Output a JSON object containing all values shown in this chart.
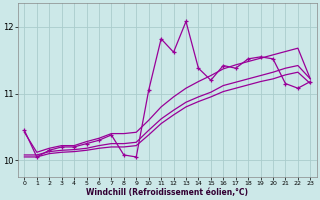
{
  "xlabel": "Windchill (Refroidissement éolien,°C)",
  "bg_color": "#cce8e8",
  "grid_color": "#aacccc",
  "line_color": "#990099",
  "xlim": [
    -0.5,
    23.5
  ],
  "ylim": [
    9.75,
    12.35
  ],
  "yticks": [
    10,
    11,
    12
  ],
  "xticks": [
    0,
    1,
    2,
    3,
    4,
    5,
    6,
    7,
    8,
    9,
    10,
    11,
    12,
    13,
    14,
    15,
    16,
    17,
    18,
    19,
    20,
    21,
    22,
    23
  ],
  "curve_x": [
    0,
    1,
    2,
    3,
    4,
    5,
    6,
    7,
    8,
    9,
    10,
    11,
    12,
    13,
    14,
    15,
    16,
    17,
    18,
    19,
    20,
    21,
    22,
    23
  ],
  "curve_y": [
    10.45,
    10.05,
    10.15,
    10.2,
    10.2,
    10.25,
    10.3,
    10.38,
    10.08,
    10.05,
    11.05,
    11.82,
    11.62,
    12.08,
    11.38,
    11.2,
    11.42,
    11.38,
    11.52,
    11.55,
    11.52,
    11.15,
    11.08,
    11.18
  ],
  "line1_x": [
    0,
    1,
    2,
    3,
    4,
    5,
    6,
    7,
    8,
    9,
    10,
    11,
    12,
    13,
    14,
    15,
    16,
    17,
    18,
    19,
    20,
    21,
    22,
    23
  ],
  "line1_y": [
    10.05,
    10.05,
    10.1,
    10.12,
    10.13,
    10.15,
    10.18,
    10.2,
    10.2,
    10.22,
    10.38,
    10.55,
    10.68,
    10.8,
    10.88,
    10.95,
    11.03,
    11.08,
    11.13,
    11.18,
    11.22,
    11.28,
    11.32,
    11.15
  ],
  "line2_x": [
    0,
    1,
    2,
    3,
    4,
    5,
    6,
    7,
    8,
    9,
    10,
    11,
    12,
    13,
    14,
    15,
    16,
    17,
    18,
    19,
    20,
    21,
    22,
    23
  ],
  "line2_y": [
    10.08,
    10.08,
    10.13,
    10.15,
    10.16,
    10.18,
    10.22,
    10.25,
    10.25,
    10.27,
    10.45,
    10.62,
    10.75,
    10.87,
    10.95,
    11.02,
    11.12,
    11.17,
    11.22,
    11.27,
    11.32,
    11.38,
    11.42,
    11.22
  ],
  "line3_x": [
    0,
    1,
    2,
    3,
    4,
    5,
    6,
    7,
    8,
    9,
    10,
    11,
    12,
    13,
    14,
    15,
    16,
    17,
    18,
    19,
    20,
    21,
    22,
    23
  ],
  "line3_y": [
    10.42,
    10.12,
    10.18,
    10.22,
    10.22,
    10.28,
    10.33,
    10.4,
    10.4,
    10.42,
    10.6,
    10.8,
    10.95,
    11.08,
    11.18,
    11.27,
    11.37,
    11.43,
    11.48,
    11.53,
    11.58,
    11.63,
    11.68,
    11.22
  ]
}
